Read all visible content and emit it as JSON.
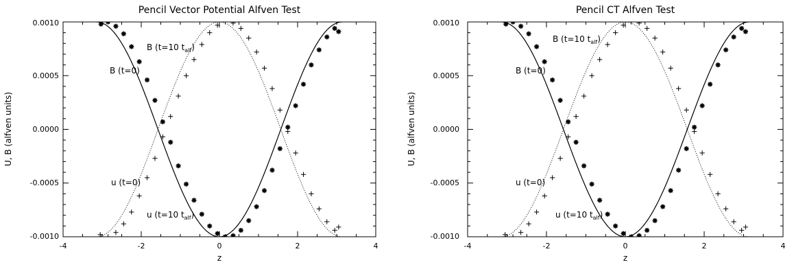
{
  "chart_data": [
    {
      "type": "scatter",
      "title": "Pencil Vector Potential Alfven Test",
      "xlabel": "z",
      "ylabel": "U, B (alfven units)",
      "xlim": [
        -4,
        4
      ],
      "ylim": [
        -0.001,
        0.001
      ],
      "xticks": [
        "-4",
        "-2",
        "0",
        "2",
        "4"
      ],
      "yticks": [
        "-0.0010",
        "-0.0005",
        "0.0000",
        "0.0005",
        "0.0010"
      ],
      "annotations": {
        "b_t10": "B (t=10 t",
        "b_t10_sub": "alf",
        "b_t0": "B (t=0)",
        "u_t0": "u (t=0)",
        "u_t10": "u (t=10 t",
        "u_t10_sub": "alf"
      },
      "series": [
        {
          "style": "dotted-line",
          "formula": "0.001*cos(z)",
          "x": [
            -3.1416,
            -1.5708,
            0,
            1.5708,
            3.1416
          ],
          "y": [
            -0.001,
            0,
            0.001,
            0,
            -0.001
          ]
        },
        {
          "style": "solid-line",
          "formula": "-0.001*cos(z)",
          "x": [
            -3.1416,
            -1.5708,
            0,
            1.5708,
            3.1416
          ],
          "y": [
            0.001,
            0,
            -0.001,
            0,
            0.001
          ]
        },
        {
          "style": "asterisk",
          "formula": "0.001*cos(z+0.4)",
          "x": [
            -3.03,
            -2.85,
            -2.65,
            -2.45,
            -2.25,
            -2.05,
            -1.85,
            -1.65,
            -1.45,
            -1.25,
            -1.05,
            -0.85,
            -0.65,
            -0.45,
            -0.25,
            -0.05,
            0.15,
            0.35,
            0.55,
            0.75,
            0.95,
            1.15,
            1.35,
            1.55,
            1.75,
            1.95,
            2.15,
            2.35,
            2.55,
            2.75,
            2.95,
            3.05
          ],
          "y": [
            0.00098,
            0.001,
            0.00096,
            0.00089,
            0.00077,
            0.00063,
            0.00046,
            0.00027,
            7e-05,
            -0.00012,
            -0.00034,
            -0.00051,
            -0.00066,
            -0.00079,
            -0.0009,
            -0.00097,
            -0.001,
            -0.00099,
            -0.00094,
            -0.00085,
            -0.00072,
            -0.00057,
            -0.00038,
            -0.00018,
            2e-05,
            0.00022,
            0.00042,
            0.0006,
            0.00074,
            0.00086,
            0.00094,
            0.00091
          ]
        },
        {
          "style": "plus",
          "formula": "-0.001*cos(z+0.7)",
          "x": [
            -3.05,
            -2.85,
            -2.65,
            -2.45,
            -2.25,
            -2.05,
            -1.85,
            -1.65,
            -1.45,
            -1.25,
            -1.05,
            -0.85,
            -0.65,
            -0.45,
            -0.25,
            -0.05,
            0.15,
            0.35,
            0.55,
            0.75,
            0.95,
            1.15,
            1.35,
            1.55,
            1.75,
            1.95,
            2.15,
            2.35,
            2.55,
            2.75,
            2.95,
            3.05
          ],
          "y": [
            -0.00098,
            -0.001,
            -0.00096,
            -0.00088,
            -0.00077,
            -0.00062,
            -0.00045,
            -0.00027,
            -7e-05,
            0.00012,
            0.00031,
            0.0005,
            0.00065,
            0.00079,
            0.0009,
            0.00097,
            0.001,
            0.00099,
            0.00094,
            0.00085,
            0.00072,
            0.00057,
            0.00038,
            0.00018,
            -2e-05,
            -0.00022,
            -0.00042,
            -0.0006,
            -0.00074,
            -0.00086,
            -0.00094,
            -0.00091
          ]
        }
      ]
    },
    {
      "type": "scatter",
      "title": "Pencil CT Alfven Test",
      "xlabel": "z",
      "ylabel": "U, B (alfven units)",
      "xlim": [
        -4,
        4
      ],
      "ylim": [
        -0.001,
        0.001
      ],
      "xticks": [
        "-4",
        "-2",
        "0",
        "2",
        "4"
      ],
      "yticks": [
        "-0.0010",
        "-0.0005",
        "0.0000",
        "0.0005",
        "0.0010"
      ],
      "annotations": {
        "b_t10": "B (t=10 t",
        "b_t10_sub": "alf",
        "b_t0": "B (t=0)",
        "u_t0": "u (t=0)",
        "u_t10": "u (t=10 t",
        "u_t10_sub": "alf"
      },
      "series": [
        {
          "style": "dotted-line",
          "formula": "0.001*cos(z)",
          "x": [
            -3.1416,
            -1.5708,
            0,
            1.5708,
            3.1416
          ],
          "y": [
            -0.001,
            0,
            0.001,
            0,
            -0.001
          ]
        },
        {
          "style": "solid-line",
          "formula": "-0.001*cos(z)",
          "x": [
            -3.1416,
            -1.5708,
            0,
            1.5708,
            3.1416
          ],
          "y": [
            0.001,
            0,
            -0.001,
            0,
            0.001
          ]
        },
        {
          "style": "asterisk",
          "formula": "0.001*cos(z+0.4)",
          "x": [
            -3.03,
            -2.85,
            -2.65,
            -2.45,
            -2.25,
            -2.05,
            -1.85,
            -1.65,
            -1.45,
            -1.25,
            -1.05,
            -0.85,
            -0.65,
            -0.45,
            -0.25,
            -0.05,
            0.15,
            0.35,
            0.55,
            0.75,
            0.95,
            1.15,
            1.35,
            1.55,
            1.75,
            1.95,
            2.15,
            2.35,
            2.55,
            2.75,
            2.95,
            3.05
          ],
          "y": [
            0.00098,
            0.001,
            0.00096,
            0.00089,
            0.00077,
            0.00063,
            0.00046,
            0.00027,
            7e-05,
            -0.00012,
            -0.00034,
            -0.00051,
            -0.00066,
            -0.00079,
            -0.0009,
            -0.00097,
            -0.001,
            -0.00099,
            -0.00094,
            -0.00085,
            -0.00072,
            -0.00057,
            -0.00038,
            -0.00018,
            2e-05,
            0.00022,
            0.00042,
            0.0006,
            0.00074,
            0.00086,
            0.00094,
            0.00091
          ]
        },
        {
          "style": "plus",
          "formula": "-0.001*cos(z+0.7)",
          "x": [
            -3.05,
            -2.85,
            -2.65,
            -2.45,
            -2.25,
            -2.05,
            -1.85,
            -1.65,
            -1.45,
            -1.25,
            -1.05,
            -0.85,
            -0.65,
            -0.45,
            -0.25,
            -0.05,
            0.15,
            0.35,
            0.55,
            0.75,
            0.95,
            1.15,
            1.35,
            1.55,
            1.75,
            1.95,
            2.15,
            2.35,
            2.55,
            2.75,
            2.95,
            3.05
          ],
          "y": [
            -0.00098,
            -0.001,
            -0.00096,
            -0.00088,
            -0.00077,
            -0.00062,
            -0.00045,
            -0.00027,
            -7e-05,
            0.00012,
            0.00031,
            0.0005,
            0.00065,
            0.00079,
            0.0009,
            0.00097,
            0.001,
            0.00099,
            0.00094,
            0.00085,
            0.00072,
            0.00057,
            0.00038,
            0.00018,
            -2e-05,
            -0.00022,
            -0.00042,
            -0.0006,
            -0.00074,
            -0.00086,
            -0.00094,
            -0.00091
          ]
        }
      ]
    }
  ]
}
